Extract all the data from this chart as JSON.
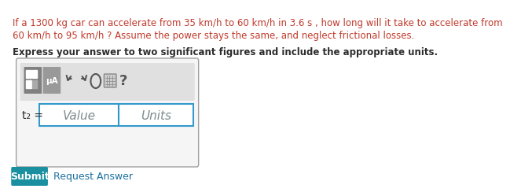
{
  "question_line1": "If a 1300 kg car can accelerate from 35 km/h to 60 km/h in 3.6 s , how long will it take to accelerate from",
  "question_line2": "60 km/h to 95 km/h ? Assume the power stays the same, and neglect frictional losses.",
  "instruction": "Express your answer to two significant figures and include the appropriate units.",
  "label": "t₂ =",
  "value_placeholder": "Value",
  "units_placeholder": "Units",
  "submit_text": "Submit",
  "request_answer_text": "Request Answer",
  "bg_color": "#ffffff",
  "question_color": "#c0392b",
  "instruction_color": "#2c2c2c",
  "label_color": "#2c2c2c",
  "placeholder_color": "#7f8c8d",
  "submit_bg": "#1a8fa0",
  "submit_text_color": "#ffffff",
  "request_answer_color": "#1a6fa0",
  "outer_box_color": "#a0a0a0",
  "input_box_color": "#3399cc",
  "toolbar_bg": "#e0e0e0",
  "icon_bg": "#808080"
}
